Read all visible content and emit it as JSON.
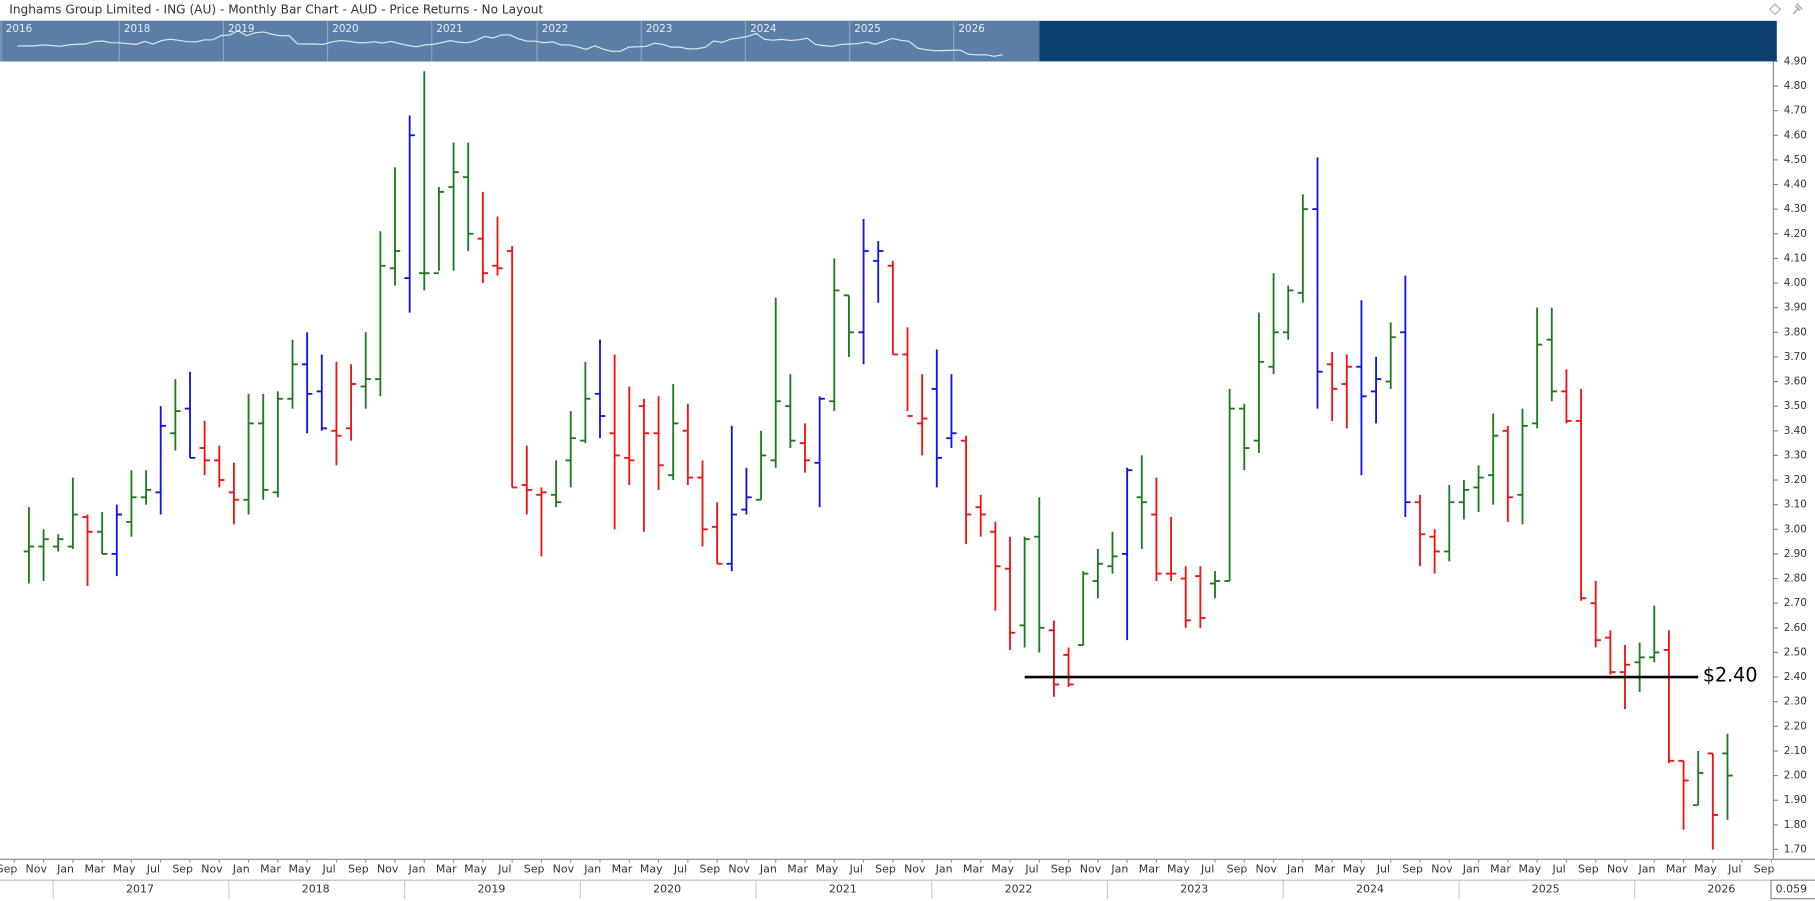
{
  "chart_data": {
    "type": "ohlc",
    "title": "Inghams Group Limited - ING (AU) - Monthly Bar Chart - AUD - Price Returns - No Layout",
    "x": [
      "2016-10",
      "2016-11",
      "2016-12",
      "2017-01",
      "2017-02",
      "2017-03",
      "2017-04",
      "2017-05",
      "2017-06",
      "2017-07",
      "2017-08",
      "2017-09",
      "2017-10",
      "2017-11",
      "2017-12",
      "2018-01",
      "2018-02",
      "2018-03",
      "2018-04",
      "2018-05",
      "2018-06",
      "2018-07",
      "2018-08",
      "2018-09",
      "2018-10",
      "2018-11",
      "2018-12",
      "2019-01",
      "2019-02",
      "2019-03",
      "2019-04",
      "2019-05",
      "2019-06",
      "2019-07",
      "2019-08",
      "2019-09",
      "2019-10",
      "2019-11",
      "2019-12",
      "2020-01",
      "2020-02",
      "2020-03",
      "2020-04",
      "2020-05",
      "2020-06",
      "2020-07",
      "2020-08",
      "2020-09",
      "2020-10",
      "2020-11",
      "2020-12",
      "2021-01",
      "2021-02",
      "2021-03",
      "2021-04",
      "2021-05",
      "2021-06",
      "2021-07",
      "2021-08",
      "2021-09",
      "2021-10",
      "2021-11",
      "2021-12",
      "2022-01",
      "2022-02",
      "2022-03",
      "2022-04",
      "2022-05",
      "2022-06",
      "2022-07",
      "2022-08",
      "2022-09",
      "2022-10",
      "2022-11",
      "2022-12",
      "2023-01",
      "2023-02",
      "2023-03",
      "2023-04",
      "2023-05",
      "2023-06",
      "2023-07",
      "2023-08",
      "2023-09",
      "2023-10",
      "2023-11",
      "2023-12",
      "2024-01",
      "2024-02",
      "2024-03",
      "2024-04",
      "2024-05",
      "2024-06",
      "2024-07",
      "2024-08",
      "2024-09",
      "2024-10",
      "2024-11",
      "2024-12",
      "2025-01",
      "2025-02",
      "2025-03",
      "2025-04",
      "2025-05",
      "2025-06",
      "2025-07",
      "2025-08",
      "2025-09",
      "2025-10",
      "2025-11",
      "2025-12",
      "2026-01",
      "2026-02",
      "2026-03",
      "2026-04",
      "2026-05",
      "2026-06"
    ],
    "open": [
      2.91,
      2.93,
      2.93,
      2.93,
      3.05,
      2.99,
      2.9,
      3.03,
      3.13,
      3.15,
      3.39,
      3.49,
      3.33,
      3.28,
      3.15,
      3.12,
      3.43,
      3.15,
      3.53,
      3.67,
      3.56,
      3.4,
      3.41,
      3.58,
      3.61,
      4.06,
      4.02,
      4.04,
      4.04,
      4.39,
      4.43,
      4.18,
      4.07,
      4.13,
      3.18,
      3.14,
      3.14,
      3.28,
      3.36,
      3.55,
      3.39,
      3.29,
      3.5,
      3.39,
      3.22,
      3.4,
      3.21,
      3.01,
      2.86,
      3.08,
      3.12,
      3.28,
      3.5,
      3.35,
      3.27,
      3.52,
      3.95,
      3.8,
      4.09,
      4.07,
      3.71,
      3.43,
      3.57,
      3.37,
      3.36,
      3.09,
      2.99,
      2.84,
      2.61,
      2.97,
      2.59,
      2.49,
      2.53,
      2.79,
      2.85,
      2.9,
      3.13,
      3.06,
      2.82,
      2.8,
      2.81,
      2.78,
      2.79,
      3.49,
      3.36,
      3.66,
      3.8,
      3.96,
      4.3,
      3.67,
      3.59,
      3.66,
      3.56,
      3.6,
      3.8,
      3.11,
      2.97,
      2.91,
      3.11,
      3.17,
      3.22,
      3.4,
      3.14,
      3.43,
      3.77,
      3.56,
      3.44,
      2.7,
      2.56,
      2.42,
      2.46,
      2.48,
      2.51,
      2.06,
      1.88,
      2.09,
      2.09
    ],
    "high": [
      3.09,
      3.0,
      2.98,
      3.21,
      3.06,
      3.07,
      3.1,
      3.24,
      3.24,
      3.5,
      3.61,
      3.64,
      3.44,
      3.34,
      3.27,
      3.55,
      3.55,
      3.56,
      3.77,
      3.8,
      3.71,
      3.68,
      3.67,
      3.8,
      4.21,
      4.47,
      4.68,
      4.86,
      4.39,
      4.57,
      4.57,
      4.37,
      4.27,
      4.15,
      3.34,
      3.17,
      3.28,
      3.48,
      3.68,
      3.77,
      3.71,
      3.58,
      3.53,
      3.54,
      3.59,
      3.51,
      3.28,
      3.11,
      3.42,
      3.25,
      3.4,
      3.94,
      3.63,
      3.43,
      3.54,
      4.1,
      3.95,
      4.26,
      4.17,
      4.09,
      3.82,
      3.63,
      3.73,
      3.63,
      3.38,
      3.14,
      3.03,
      2.97,
      2.97,
      3.13,
      2.63,
      2.52,
      2.83,
      2.92,
      2.99,
      3.25,
      3.3,
      3.21,
      3.05,
      2.85,
      2.85,
      2.83,
      3.57,
      3.51,
      3.88,
      4.04,
      3.99,
      4.36,
      4.51,
      3.72,
      3.71,
      3.93,
      3.7,
      3.84,
      4.03,
      3.14,
      3.0,
      3.18,
      3.2,
      3.26,
      3.47,
      3.42,
      3.49,
      3.9,
      3.9,
      3.65,
      3.57,
      2.79,
      2.59,
      2.53,
      2.54,
      2.69,
      2.59,
      2.06,
      2.1,
      2.09,
      2.17
    ],
    "low": [
      2.78,
      2.79,
      2.91,
      2.92,
      2.77,
      2.9,
      2.81,
      2.97,
      3.1,
      3.06,
      3.32,
      3.29,
      3.22,
      3.17,
      3.02,
      3.06,
      3.12,
      3.13,
      3.49,
      3.39,
      3.4,
      3.26,
      3.36,
      3.49,
      3.54,
      3.99,
      3.88,
      3.97,
      4.05,
      4.05,
      4.13,
      4.0,
      4.03,
      3.17,
      3.06,
      2.89,
      3.09,
      3.17,
      3.35,
      3.37,
      3.0,
      3.18,
      2.99,
      3.16,
      3.2,
      3.18,
      2.93,
      2.86,
      2.83,
      3.06,
      3.12,
      3.25,
      3.33,
      3.23,
      3.09,
      3.48,
      3.7,
      3.67,
      3.92,
      3.71,
      3.48,
      3.3,
      3.17,
      3.33,
      2.94,
      2.97,
      2.67,
      2.51,
      2.52,
      2.5,
      2.32,
      2.36,
      2.53,
      2.72,
      2.82,
      2.55,
      2.92,
      2.79,
      2.79,
      2.6,
      2.6,
      2.72,
      2.79,
      3.24,
      3.31,
      3.63,
      3.77,
      3.92,
      3.49,
      3.44,
      3.41,
      3.22,
      3.43,
      3.57,
      3.05,
      2.85,
      2.82,
      2.87,
      3.04,
      3.07,
      3.1,
      3.03,
      3.02,
      3.41,
      3.52,
      3.43,
      2.71,
      2.52,
      2.41,
      2.27,
      2.34,
      2.46,
      2.05,
      1.78,
      1.88,
      1.7,
      1.82
    ],
    "close": [
      2.93,
      2.96,
      2.96,
      3.06,
      2.99,
      2.9,
      3.06,
      3.13,
      3.16,
      3.42,
      3.48,
      3.29,
      3.28,
      3.2,
      3.12,
      3.43,
      3.16,
      3.53,
      3.67,
      3.55,
      3.41,
      3.38,
      3.59,
      3.61,
      4.07,
      4.13,
      4.6,
      4.04,
      4.37,
      4.45,
      4.2,
      4.04,
      4.06,
      3.17,
      3.16,
      3.15,
      3.11,
      3.37,
      3.53,
      3.46,
      3.3,
      3.28,
      3.39,
      3.26,
      3.43,
      3.21,
      3.0,
      2.86,
      3.06,
      3.13,
      3.3,
      3.52,
      3.36,
      3.28,
      3.53,
      3.97,
      3.8,
      4.13,
      4.13,
      3.71,
      3.46,
      3.45,
      3.29,
      3.39,
      3.06,
      3.06,
      2.85,
      2.58,
      2.96,
      2.6,
      2.37,
      2.37,
      2.82,
      2.86,
      2.89,
      3.24,
      3.11,
      2.82,
      2.82,
      2.63,
      2.64,
      2.79,
      3.49,
      3.33,
      3.68,
      3.8,
      3.97,
      4.3,
      3.64,
      3.57,
      3.66,
      3.54,
      3.61,
      3.78,
      3.11,
      2.98,
      2.91,
      3.11,
      3.16,
      3.21,
      3.38,
      3.13,
      3.42,
      3.75,
      3.56,
      3.44,
      2.72,
      2.55,
      2.42,
      2.45,
      2.48,
      2.5,
      2.06,
      1.98,
      2.01,
      1.84,
      2.0
    ],
    "palette": {
      "g": "#1e7b1e",
      "r": "#f01414",
      "b": "#1414e6"
    },
    "bar_color": [
      "g",
      "g",
      "g",
      "g",
      "r",
      "g",
      "b",
      "g",
      "g",
      "b",
      "g",
      "b",
      "r",
      "r",
      "r",
      "g",
      "g",
      "g",
      "g",
      "b",
      "b",
      "r",
      "r",
      "g",
      "g",
      "g",
      "b",
      "g",
      "g",
      "g",
      "g",
      "r",
      "r",
      "r",
      "r",
      "r",
      "g",
      "g",
      "g",
      "b",
      "r",
      "r",
      "r",
      "r",
      "g",
      "r",
      "r",
      "r",
      "b",
      "b",
      "g",
      "g",
      "g",
      "r",
      "b",
      "g",
      "g",
      "b",
      "b",
      "r",
      "r",
      "r",
      "b",
      "b",
      "r",
      "r",
      "r",
      "r",
      "g",
      "g",
      "r",
      "r",
      "g",
      "g",
      "g",
      "b",
      "g",
      "r",
      "r",
      "r",
      "r",
      "g",
      "g",
      "g",
      "g",
      "g",
      "g",
      "g",
      "b",
      "r",
      "r",
      "b",
      "b",
      "g",
      "b",
      "r",
      "r",
      "g",
      "g",
      "g",
      "g",
      "r",
      "g",
      "g",
      "g",
      "r",
      "r",
      "r",
      "r",
      "r",
      "g",
      "g",
      "r",
      "r",
      "g",
      "r",
      "g"
    ],
    "ylim": [
      1.66,
      4.9
    ],
    "yticks": [
      {
        "value": 1.7,
        "label": "1.70"
      },
      {
        "value": 1.8,
        "label": "1.80"
      },
      {
        "value": 1.9,
        "label": "1.90"
      },
      {
        "value": 2.0,
        "label": "2.00"
      },
      {
        "value": 2.1,
        "label": "2.10"
      },
      {
        "value": 2.2,
        "label": "2.20"
      },
      {
        "value": 2.3,
        "label": "2.30"
      },
      {
        "value": 2.4,
        "label": "2.40"
      },
      {
        "value": 2.5,
        "label": "2.50"
      },
      {
        "value": 2.6,
        "label": "2.60"
      },
      {
        "value": 2.7,
        "label": "2.70"
      },
      {
        "value": 2.8,
        "label": "2.80"
      },
      {
        "value": 2.9,
        "label": "2.90"
      },
      {
        "value": 3.0,
        "label": "3.00"
      },
      {
        "value": 3.1,
        "label": "3.10"
      },
      {
        "value": 3.2,
        "label": "3.20"
      },
      {
        "value": 3.3,
        "label": "3.30"
      },
      {
        "value": 3.4,
        "label": "3.40"
      },
      {
        "value": 3.5,
        "label": "3.50"
      },
      {
        "value": 3.6,
        "label": "3.60"
      },
      {
        "value": 3.7,
        "label": "3.70"
      },
      {
        "value": 3.8,
        "label": "3.80"
      },
      {
        "value": 3.9,
        "label": "3.90"
      },
      {
        "value": 4.0,
        "label": "4.00"
      },
      {
        "value": 4.1,
        "label": "4.10"
      },
      {
        "value": 4.2,
        "label": "4.20"
      },
      {
        "value": 4.3,
        "label": "4.30"
      },
      {
        "value": 4.4,
        "label": "4.40"
      },
      {
        "value": 4.5,
        "label": "4.50"
      },
      {
        "value": 4.6,
        "label": "4.60"
      },
      {
        "value": 4.7,
        "label": "4.70"
      },
      {
        "value": 4.8,
        "label": "4.80"
      },
      {
        "value": 4.9,
        "label": "4.90"
      }
    ],
    "xticks_month": [
      {
        "value": "2016-09",
        "label": "Sep"
      },
      {
        "value": "2016-11",
        "label": "Nov"
      },
      {
        "value": "2017-01",
        "label": "Jan"
      },
      {
        "value": "2017-03",
        "label": "Mar"
      },
      {
        "value": "2017-05",
        "label": "May"
      },
      {
        "value": "2017-07",
        "label": "Jul"
      },
      {
        "value": "2017-09",
        "label": "Sep"
      },
      {
        "value": "2017-11",
        "label": "Nov"
      },
      {
        "value": "2018-01",
        "label": "Jan"
      },
      {
        "value": "2018-03",
        "label": "Mar"
      },
      {
        "value": "2018-05",
        "label": "May"
      },
      {
        "value": "2018-07",
        "label": "Jul"
      },
      {
        "value": "2018-09",
        "label": "Sep"
      },
      {
        "value": "2018-11",
        "label": "Nov"
      },
      {
        "value": "2019-01",
        "label": "Jan"
      },
      {
        "value": "2019-03",
        "label": "Mar"
      },
      {
        "value": "2019-05",
        "label": "May"
      },
      {
        "value": "2019-07",
        "label": "Jul"
      },
      {
        "value": "2019-09",
        "label": "Sep"
      },
      {
        "value": "2019-11",
        "label": "Nov"
      },
      {
        "value": "2020-01",
        "label": "Jan"
      },
      {
        "value": "2020-03",
        "label": "Mar"
      },
      {
        "value": "2020-05",
        "label": "May"
      },
      {
        "value": "2020-07",
        "label": "Jul"
      },
      {
        "value": "2020-09",
        "label": "Sep"
      },
      {
        "value": "2020-11",
        "label": "Nov"
      },
      {
        "value": "2021-01",
        "label": "Jan"
      },
      {
        "value": "2021-03",
        "label": "Mar"
      },
      {
        "value": "2021-05",
        "label": "May"
      },
      {
        "value": "2021-07",
        "label": "Jul"
      },
      {
        "value": "2021-09",
        "label": "Sep"
      },
      {
        "value": "2021-11",
        "label": "Nov"
      },
      {
        "value": "2022-01",
        "label": "Jan"
      },
      {
        "value": "2022-03",
        "label": "Mar"
      },
      {
        "value": "2022-05",
        "label": "May"
      },
      {
        "value": "2022-07",
        "label": "Jul"
      },
      {
        "value": "2022-09",
        "label": "Sep"
      },
      {
        "value": "2022-11",
        "label": "Nov"
      },
      {
        "value": "2023-01",
        "label": "Jan"
      },
      {
        "value": "2023-03",
        "label": "Mar"
      },
      {
        "value": "2023-05",
        "label": "May"
      },
      {
        "value": "2023-07",
        "label": "Jul"
      },
      {
        "value": "2023-09",
        "label": "Sep"
      },
      {
        "value": "2023-11",
        "label": "Nov"
      },
      {
        "value": "2024-01",
        "label": "Jan"
      },
      {
        "value": "2024-03",
        "label": "Mar"
      },
      {
        "value": "2024-05",
        "label": "May"
      },
      {
        "value": "2024-07",
        "label": "Jul"
      },
      {
        "value": "2024-09",
        "label": "Sep"
      },
      {
        "value": "2024-11",
        "label": "Nov"
      },
      {
        "value": "2025-01",
        "label": "Jan"
      },
      {
        "value": "2025-03",
        "label": "Mar"
      },
      {
        "value": "2025-05",
        "label": "May"
      },
      {
        "value": "2025-07",
        "label": "Jul"
      },
      {
        "value": "2025-09",
        "label": "Sep"
      },
      {
        "value": "2025-11",
        "label": "Nov"
      },
      {
        "value": "2026-01",
        "label": "Jan"
      },
      {
        "value": "2026-03",
        "label": "Mar"
      },
      {
        "value": "2026-05",
        "label": "May"
      },
      {
        "value": "2026-07",
        "label": "Jul"
      },
      {
        "value": "2026-09",
        "label": "Sep"
      }
    ],
    "xticks_year": [
      "2017",
      "2018",
      "2019",
      "2020",
      "2021",
      "2022",
      "2023",
      "2024",
      "2025",
      "2026"
    ],
    "navigator_years": [
      "2016",
      "2018",
      "2019",
      "2020",
      "2021",
      "2022",
      "2023",
      "2024",
      "2025",
      "2026"
    ],
    "hlines": [
      {
        "value": 2.4,
        "label": "$2.40",
        "from": "2022-06",
        "to": "2026-04",
        "color": "#000000"
      }
    ],
    "corner_value": "0.059"
  }
}
